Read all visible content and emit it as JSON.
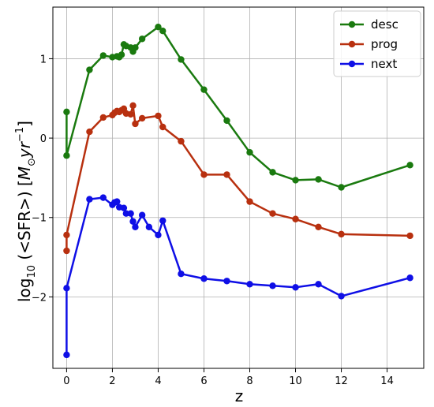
{
  "chart_data": {
    "type": "line",
    "xlabel": "z",
    "ylabel": {
      "prefix": "log",
      "subscript": "10",
      "middle": " (<SFR>) [",
      "unit_m": "M",
      "unit_sub": "⊙",
      "unit_rest": "yr",
      "unit_sup": "−1",
      "suffix": "]"
    },
    "xlim": [
      -0.6,
      15.6
    ],
    "ylim": [
      -2.9,
      1.65
    ],
    "xticks": [
      0,
      2,
      4,
      6,
      8,
      10,
      12,
      14
    ],
    "yticks": [
      -2,
      -1,
      0,
      1
    ],
    "ytick_labels": [
      "−2",
      "−1",
      "0",
      "1"
    ],
    "grid": true,
    "legend_position": "top-right",
    "series": [
      {
        "name": "desc",
        "color": "#1a7a0f",
        "x": [
          0,
          0,
          1,
          1.6,
          2,
          2.2,
          2.3,
          2.4,
          2.5,
          2.6,
          2.8,
          2.9,
          3,
          3.3,
          4,
          4.2,
          5,
          6,
          7,
          8,
          9,
          10,
          11,
          12,
          15
        ],
        "y": [
          0.33,
          -0.22,
          0.86,
          1.04,
          1.02,
          1.03,
          1.02,
          1.05,
          1.18,
          1.16,
          1.14,
          1.09,
          1.14,
          1.25,
          1.4,
          1.35,
          0.99,
          0.61,
          0.22,
          -0.18,
          -0.43,
          -0.53,
          -0.52,
          -0.62,
          -0.34
        ]
      },
      {
        "name": "prog",
        "color": "#b8300f",
        "x": [
          0,
          0,
          1,
          1.6,
          2,
          2.1,
          2.2,
          2.3,
          2.4,
          2.5,
          2.6,
          2.8,
          2.9,
          3,
          3.3,
          4,
          4.2,
          5,
          6,
          7,
          8,
          9,
          10,
          11,
          12,
          15
        ],
        "y": [
          -1.42,
          -1.22,
          0.08,
          0.26,
          0.29,
          0.32,
          0.34,
          0.33,
          0.35,
          0.37,
          0.31,
          0.3,
          0.41,
          0.18,
          0.25,
          0.28,
          0.14,
          -0.04,
          -0.46,
          -0.46,
          -0.8,
          -0.95,
          -1.02,
          -1.12,
          -1.21,
          -1.23
        ]
      },
      {
        "name": "next",
        "color": "#0f0fe6",
        "x": [
          0,
          0,
          1,
          1.6,
          2,
          2.1,
          2.2,
          2.3,
          2.5,
          2.6,
          2.8,
          2.9,
          3,
          3.3,
          3.6,
          4,
          4.2,
          5,
          6,
          7,
          8,
          9,
          10,
          11,
          12,
          15
        ],
        "y": [
          -2.73,
          -1.89,
          -0.77,
          -0.75,
          -0.84,
          -0.81,
          -0.8,
          -0.87,
          -0.88,
          -0.95,
          -0.95,
          -1.05,
          -1.12,
          -0.97,
          -1.12,
          -1.22,
          -1.04,
          -1.71,
          -1.77,
          -1.8,
          -1.84,
          -1.86,
          -1.88,
          -1.84,
          -1.99,
          -1.76
        ]
      }
    ]
  }
}
